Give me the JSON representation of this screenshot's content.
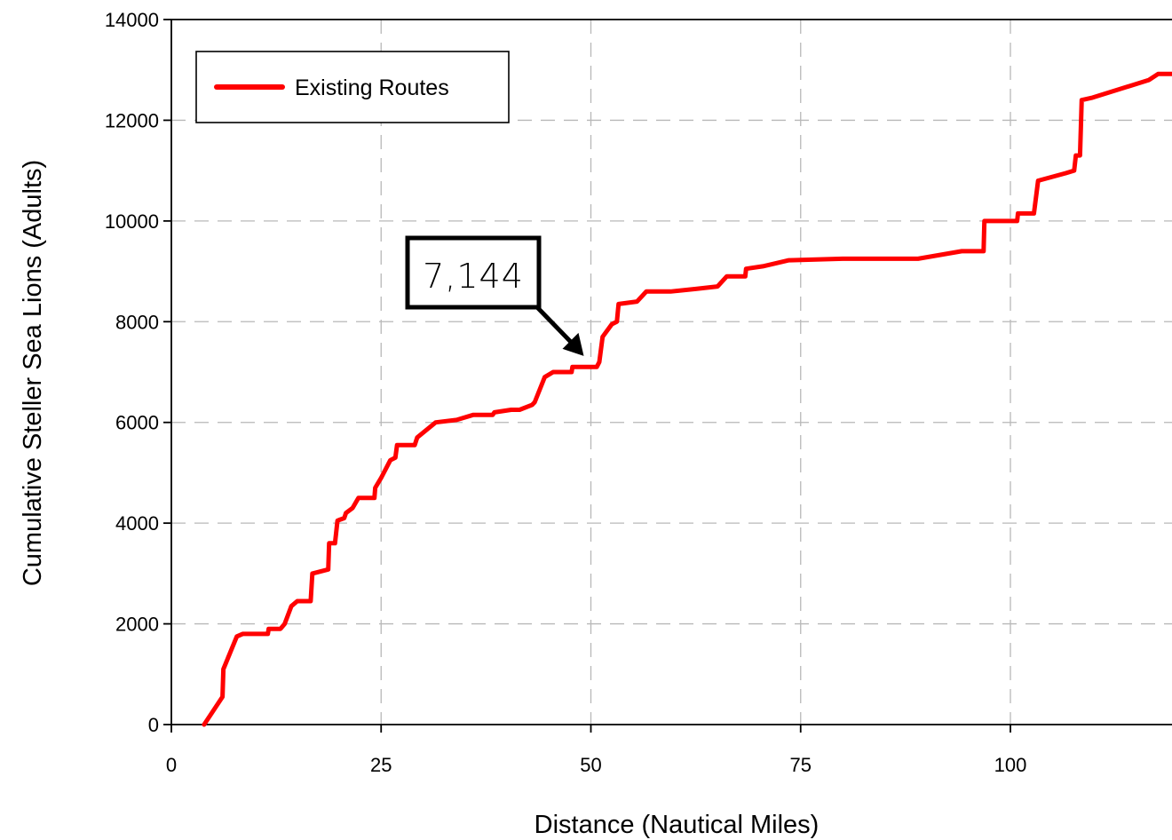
{
  "chart_data": {
    "type": "line",
    "xlabel": "Distance (Nautical Miles)",
    "ylabel": "Cumulative Steller Sea Lions (Adults)",
    "xlim": [
      0,
      120
    ],
    "ylim": [
      0,
      14000
    ],
    "xticks": [
      0,
      25,
      50,
      75,
      100
    ],
    "yticks": [
      0,
      2000,
      4000,
      6000,
      8000,
      10000,
      12000,
      14000
    ],
    "grid": true,
    "legend_position": "top-left",
    "series": [
      {
        "name": "Existing Routes",
        "color": "#ff0000",
        "points": [
          [
            3.9,
            0
          ],
          [
            6.1,
            550
          ],
          [
            6.2,
            1100
          ],
          [
            7.8,
            1750
          ],
          [
            8.5,
            1800
          ],
          [
            11.5,
            1800
          ],
          [
            11.6,
            1900
          ],
          [
            13.0,
            1900
          ],
          [
            13.5,
            2000
          ],
          [
            14.3,
            2350
          ],
          [
            15.0,
            2450
          ],
          [
            16.6,
            2450
          ],
          [
            16.8,
            3000
          ],
          [
            18.7,
            3080
          ],
          [
            18.8,
            3600
          ],
          [
            19.5,
            3600
          ],
          [
            19.8,
            4050
          ],
          [
            20.6,
            4100
          ],
          [
            20.8,
            4200
          ],
          [
            21.6,
            4300
          ],
          [
            22.3,
            4500
          ],
          [
            24.2,
            4500
          ],
          [
            24.3,
            4700
          ],
          [
            25.0,
            4900
          ],
          [
            26.1,
            5250
          ],
          [
            26.7,
            5300
          ],
          [
            26.9,
            5550
          ],
          [
            29.0,
            5550
          ],
          [
            29.3,
            5700
          ],
          [
            31.5,
            6000
          ],
          [
            34.0,
            6050
          ],
          [
            36.0,
            6150
          ],
          [
            38.3,
            6150
          ],
          [
            38.5,
            6200
          ],
          [
            40.5,
            6250
          ],
          [
            41.5,
            6250
          ],
          [
            43.0,
            6350
          ],
          [
            43.3,
            6400
          ],
          [
            44.5,
            6900
          ],
          [
            45.5,
            7000
          ],
          [
            47.7,
            7000
          ],
          [
            47.8,
            7100
          ],
          [
            50.7,
            7100
          ],
          [
            51.0,
            7200
          ],
          [
            51.4,
            7700
          ],
          [
            52.5,
            7950
          ],
          [
            53.1,
            8000
          ],
          [
            53.3,
            8350
          ],
          [
            55.5,
            8400
          ],
          [
            56.6,
            8600
          ],
          [
            59.5,
            8600
          ],
          [
            62.5,
            8650
          ],
          [
            65.1,
            8700
          ],
          [
            66.2,
            8900
          ],
          [
            68.4,
            8900
          ],
          [
            68.5,
            9050
          ],
          [
            70.5,
            9100
          ],
          [
            73.6,
            9220
          ],
          [
            80.0,
            9250
          ],
          [
            89.0,
            9250
          ],
          [
            94.2,
            9400
          ],
          [
            96.8,
            9400
          ],
          [
            96.9,
            10000
          ],
          [
            100.8,
            10000
          ],
          [
            100.9,
            10150
          ],
          [
            102.8,
            10150
          ],
          [
            103.3,
            10800
          ],
          [
            106.6,
            10950
          ],
          [
            107.6,
            11000
          ],
          [
            107.8,
            11300
          ],
          [
            108.3,
            11300
          ],
          [
            108.5,
            12400
          ],
          [
            109.8,
            12450
          ],
          [
            116.5,
            12800
          ],
          [
            117.6,
            12920
          ],
          [
            120.0,
            12920
          ]
        ]
      }
    ],
    "annotations": [
      {
        "text": "7,144",
        "x": 50.0,
        "y": 7144
      }
    ]
  }
}
